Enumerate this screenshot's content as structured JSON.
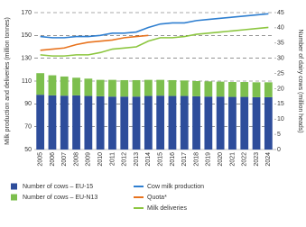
{
  "chart_data": {
    "type": "bar-line",
    "y_label": "Milk production and deliveries (million tonnes)",
    "y2_label": "Number of dairy cows (million heads)",
    "categories": [
      "2005",
      "2006",
      "2007",
      "2008",
      "2009",
      "2010",
      "2011",
      "2012",
      "2013",
      "2014",
      "2015",
      "2016",
      "2017",
      "2018",
      "2019",
      "2020",
      "2021",
      "2022",
      "2023",
      "2024"
    ],
    "ylim": [
      50,
      170
    ],
    "yticks": [
      50,
      70,
      90,
      110,
      130,
      150,
      170
    ],
    "y2lim": [
      0,
      45
    ],
    "y2ticks": [
      0,
      5,
      10,
      15,
      20,
      25,
      30,
      35,
      40,
      45
    ],
    "grid": true,
    "series": [
      {
        "name": "Number of cows – EU-15",
        "type": "bar",
        "axis": "y2",
        "color": "#2e4d9b",
        "values": [
          18.0,
          17.8,
          17.7,
          17.8,
          17.6,
          17.5,
          17.4,
          17.4,
          17.4,
          17.6,
          17.7,
          17.6,
          17.6,
          17.5,
          17.4,
          17.4,
          17.3,
          17.3,
          17.2,
          17.2
        ]
      },
      {
        "name": "Number of cows – EU-N13",
        "type": "bar",
        "axis": "y2",
        "color": "#7dbf4e",
        "values": [
          7.1,
          6.6,
          6.3,
          5.8,
          5.7,
          5.4,
          5.5,
          5.4,
          5.4,
          5.3,
          5.2,
          5.2,
          5.1,
          5.0,
          5.0,
          4.9,
          4.9,
          4.9,
          4.9,
          4.9
        ]
      },
      {
        "name": "Cow milk production",
        "type": "line",
        "color": "#2f7fd0",
        "values": [
          149,
          148,
          148,
          149,
          149,
          150,
          152,
          152,
          153,
          157,
          160,
          161,
          161,
          163,
          164,
          165,
          166,
          167,
          168,
          169
        ]
      },
      {
        "name": "Quota*",
        "type": "line",
        "color": "#e8731e",
        "values": [
          137,
          138,
          139,
          142,
          144,
          145,
          146,
          148,
          149,
          150,
          null,
          null,
          null,
          null,
          null,
          null,
          null,
          null,
          null,
          null
        ]
      },
      {
        "name": "Milk deliveries",
        "type": "line",
        "color": "#8cc63f",
        "values": [
          133,
          132,
          132,
          133,
          133,
          135,
          138,
          139,
          140,
          145,
          148,
          148,
          149,
          151,
          152,
          153,
          154,
          155,
          156,
          157
        ]
      }
    ]
  }
}
